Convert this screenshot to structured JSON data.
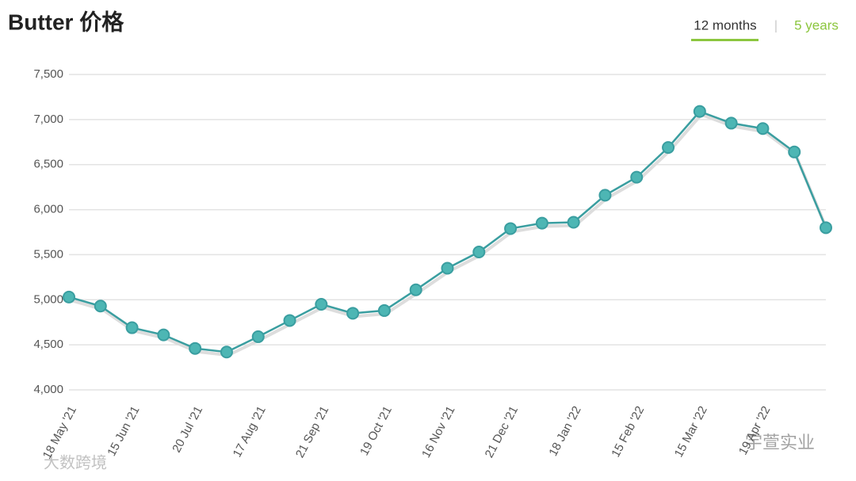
{
  "chart_data": {
    "type": "line",
    "title": "Butter 价格",
    "categories": [
      "18 May '21",
      null,
      "15 Jun '21",
      null,
      "20 Jul '21",
      null,
      "17 Aug '21",
      null,
      "21 Sep '21",
      null,
      "19 Oct '21",
      null,
      "16 Nov '21",
      null,
      "21 Dec '21",
      null,
      "18 Jan '22",
      null,
      "15 Feb '22",
      null,
      "15 Mar '22",
      null,
      "19 Apr '22",
      null,
      null
    ],
    "values": [
      5030,
      4930,
      4690,
      4610,
      4460,
      4420,
      4590,
      4770,
      4950,
      4850,
      4880,
      5110,
      5350,
      5530,
      5790,
      5850,
      5860,
      6160,
      6360,
      6690,
      7090,
      6960,
      6900,
      6640,
      5800
    ],
    "color": "#3a9ea0",
    "ylim": [
      4000,
      7500
    ],
    "yticks": [
      {
        "value": 4000,
        "label": "4,000"
      },
      {
        "value": 4500,
        "label": "4,500"
      },
      {
        "value": 5000,
        "label": "5,000"
      },
      {
        "value": 5500,
        "label": "5,500"
      },
      {
        "value": 6000,
        "label": "6,000"
      },
      {
        "value": 6500,
        "label": "6,500"
      },
      {
        "value": 7000,
        "label": "7,000"
      },
      {
        "value": 7500,
        "label": "7,500"
      }
    ],
    "grid": true
  },
  "tabs": [
    "12 months",
    "5 years"
  ],
  "watermarks": [
    "大数跨境",
    "宇萱实业"
  ]
}
